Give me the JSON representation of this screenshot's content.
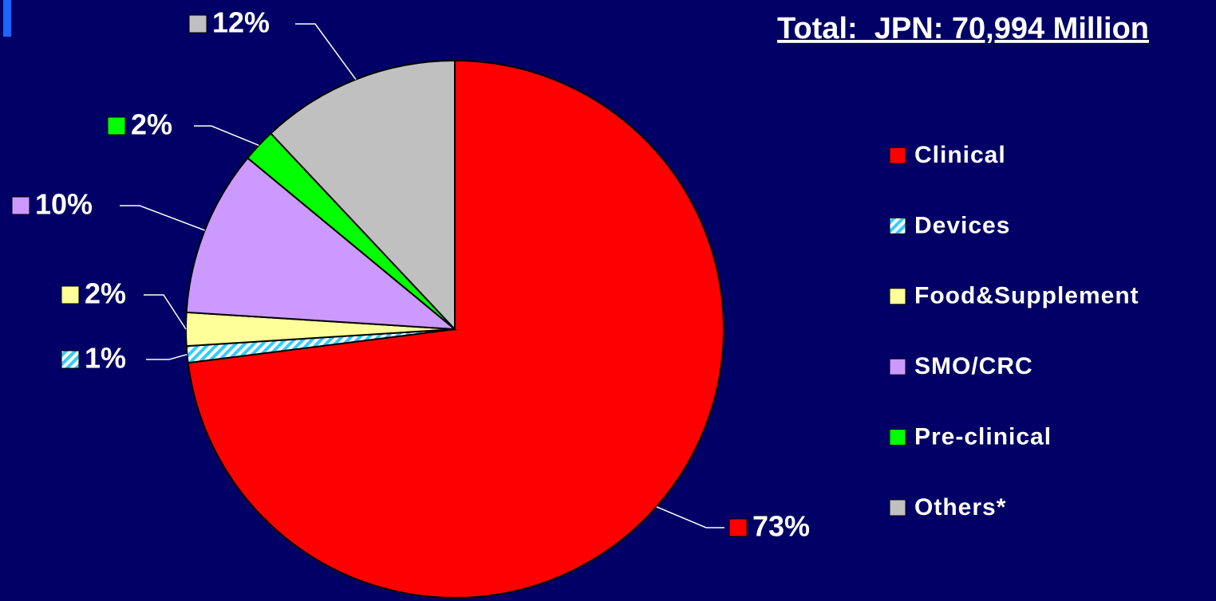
{
  "chart_data": {
    "type": "pie",
    "title": "Total:  JPN: 70,994 Million",
    "categories": [
      "Clinical",
      "Devices",
      "Food&Supplement",
      "SMO/CRC",
      "Pre-clinical",
      "Others*"
    ],
    "values": [
      73,
      1,
      2,
      10,
      2,
      12
    ],
    "value_labels": [
      "73%",
      "1%",
      "2%",
      "10%",
      "2%",
      "12%"
    ],
    "colors": [
      "#ff0000",
      "hatch",
      "#ffff99",
      "#cc99ff",
      "#00ff00",
      "#c0c0c0"
    ],
    "legend": "right"
  }
}
